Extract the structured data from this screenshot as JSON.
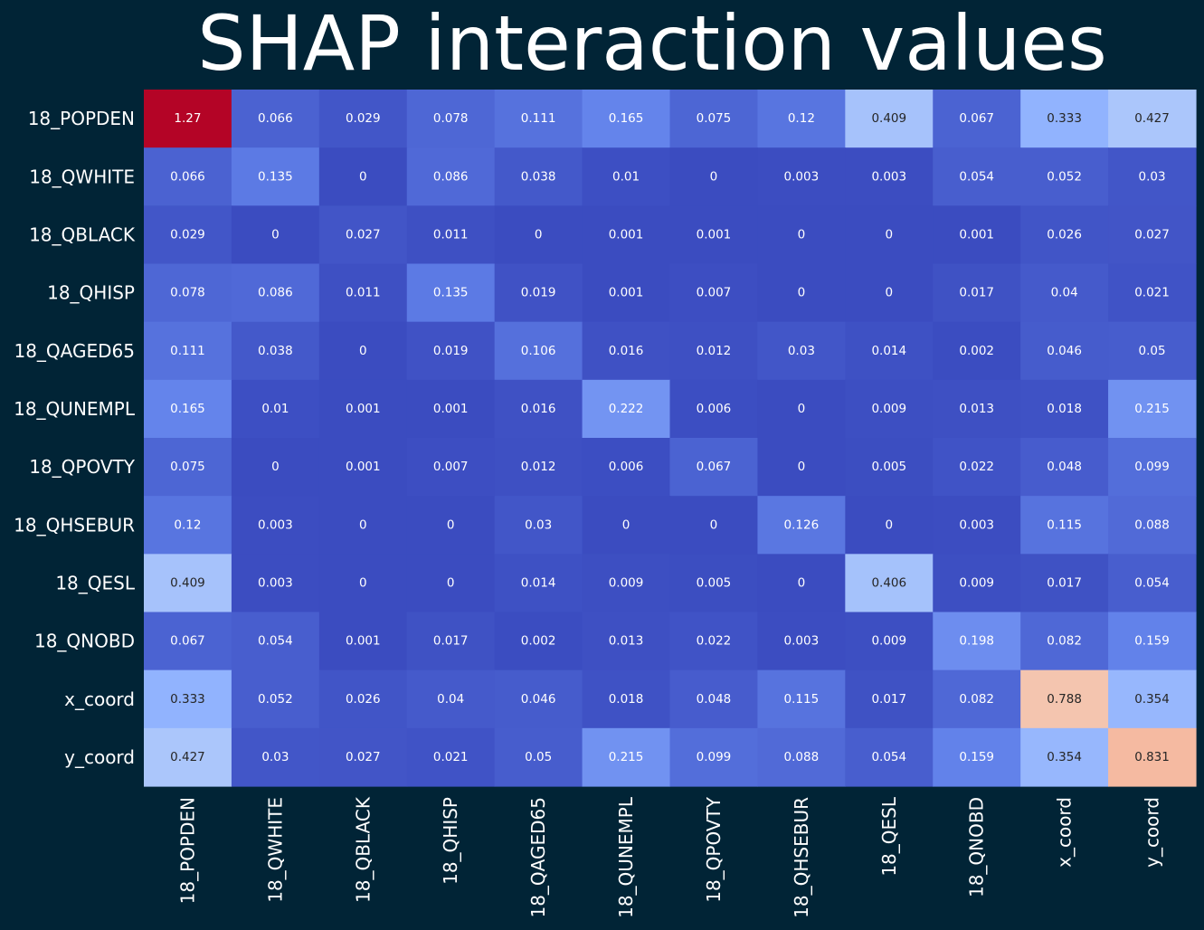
{
  "chart_data": {
    "type": "heatmap",
    "title": "SHAP interaction values",
    "xlabel": "",
    "ylabel": "",
    "colormap": "coolwarm",
    "colorbar": false,
    "row_labels": [
      "18_POPDEN",
      "18_QWHITE",
      "18_QBLACK",
      "18_QHISP",
      "18_QAGED65",
      "18_QUNEMPL",
      "18_QPOVTY",
      "18_QHSEBUR",
      "18_QESL",
      "18_QNOBD",
      "x_coord",
      "y_coord"
    ],
    "column_labels": [
      "18_POPDEN",
      "18_QWHITE",
      "18_QBLACK",
      "18_QHISP",
      "18_QAGED65",
      "18_QUNEMPL",
      "18_QPOVTY",
      "18_QHSEBUR",
      "18_QESL",
      "18_QNOBD",
      "x_coord",
      "y_coord"
    ],
    "values": [
      [
        1.27,
        0.066,
        0.029,
        0.078,
        0.111,
        0.165,
        0.075,
        0.12,
        0.409,
        0.067,
        0.333,
        0.427
      ],
      [
        0.066,
        0.135,
        0,
        0.086,
        0.038,
        0.01,
        0,
        0.003,
        0.003,
        0.054,
        0.052,
        0.03
      ],
      [
        0.029,
        0,
        0.027,
        0.011,
        0,
        0.001,
        0.001,
        0,
        0,
        0.001,
        0.026,
        0.027
      ],
      [
        0.078,
        0.086,
        0.011,
        0.135,
        0.019,
        0.001,
        0.007,
        0,
        0,
        0.017,
        0.04,
        0.021
      ],
      [
        0.111,
        0.038,
        0,
        0.019,
        0.106,
        0.016,
        0.012,
        0.03,
        0.014,
        0.002,
        0.046,
        0.05
      ],
      [
        0.165,
        0.01,
        0.001,
        0.001,
        0.016,
        0.222,
        0.006,
        0,
        0.009,
        0.013,
        0.018,
        0.215
      ],
      [
        0.075,
        0,
        0.001,
        0.007,
        0.012,
        0.006,
        0.067,
        0,
        0.005,
        0.022,
        0.048,
        0.099
      ],
      [
        0.12,
        0.003,
        0,
        0,
        0.03,
        0,
        0,
        0.126,
        0,
        0.003,
        0.115,
        0.088
      ],
      [
        0.409,
        0.003,
        0,
        0,
        0.014,
        0.009,
        0.005,
        0,
        0.406,
        0.009,
        0.017,
        0.054
      ],
      [
        0.067,
        0.054,
        0.001,
        0.017,
        0.002,
        0.013,
        0.022,
        0.003,
        0.009,
        0.198,
        0.082,
        0.159
      ],
      [
        0.333,
        0.052,
        0.026,
        0.04,
        0.046,
        0.018,
        0.048,
        0.115,
        0.017,
        0.082,
        0.788,
        0.354
      ],
      [
        0.427,
        0.03,
        0.027,
        0.021,
        0.05,
        0.215,
        0.099,
        0.088,
        0.054,
        0.159,
        0.354,
        0.831
      ]
    ],
    "vmin": 0,
    "vmax": 1.27,
    "background_color": "#012436",
    "text_color": "#ffffff"
  }
}
